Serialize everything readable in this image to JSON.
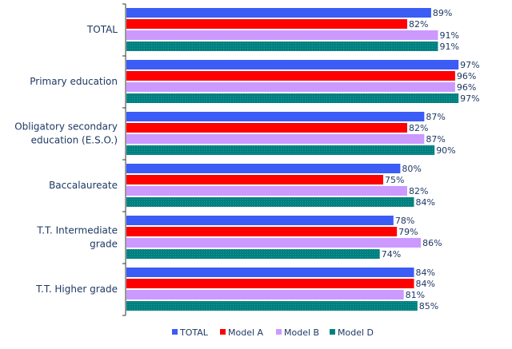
{
  "chart_data": {
    "type": "bar",
    "orientation": "horizontal",
    "categories": [
      [
        "TOTAL"
      ],
      [
        "Primary education"
      ],
      [
        "Obligatory secondary",
        "education (E.S.O.)"
      ],
      [
        "Baccalaureate"
      ],
      [
        "T.T. Intermediate",
        "grade"
      ],
      [
        "T.T. Higher grade"
      ]
    ],
    "series": [
      {
        "name": "TOTAL",
        "color": "#3b5cf5",
        "values": [
          89,
          97,
          87,
          80,
          78,
          84
        ]
      },
      {
        "name": "Model A",
        "color": "#ff0000",
        "values": [
          82,
          96,
          82,
          75,
          79,
          84
        ]
      },
      {
        "name": "Model B",
        "color": "#cc99ff",
        "values": [
          91,
          96,
          87,
          82,
          86,
          81
        ]
      },
      {
        "name": "Model D",
        "color": "#008080",
        "values": [
          91,
          97,
          90,
          84,
          74,
          85
        ]
      }
    ],
    "value_suffix": "%",
    "xlim": [
      0,
      100
    ],
    "grid": false,
    "legend_position": "bottom"
  }
}
